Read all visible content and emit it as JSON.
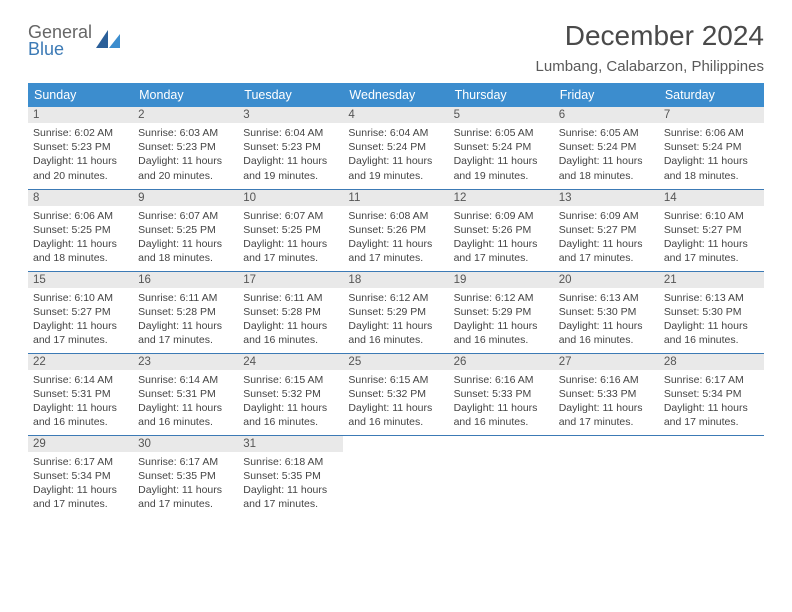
{
  "logo": {
    "line1": "General",
    "line2": "Blue"
  },
  "title": "December 2024",
  "subtitle": "Lumbang, Calabarzon, Philippines",
  "colors": {
    "header_bg": "#3c8dce",
    "header_fg": "#ffffff",
    "divider": "#3c7ab5",
    "daynum_bg": "#e9e9e9",
    "logo_accent": "#3c7ab5"
  },
  "weekdays": [
    "Sunday",
    "Monday",
    "Tuesday",
    "Wednesday",
    "Thursday",
    "Friday",
    "Saturday"
  ],
  "days": [
    {
      "n": "1",
      "sr": "6:02 AM",
      "ss": "5:23 PM",
      "dl": "11 hours and 20 minutes."
    },
    {
      "n": "2",
      "sr": "6:03 AM",
      "ss": "5:23 PM",
      "dl": "11 hours and 20 minutes."
    },
    {
      "n": "3",
      "sr": "6:04 AM",
      "ss": "5:23 PM",
      "dl": "11 hours and 19 minutes."
    },
    {
      "n": "4",
      "sr": "6:04 AM",
      "ss": "5:24 PM",
      "dl": "11 hours and 19 minutes."
    },
    {
      "n": "5",
      "sr": "6:05 AM",
      "ss": "5:24 PM",
      "dl": "11 hours and 19 minutes."
    },
    {
      "n": "6",
      "sr": "6:05 AM",
      "ss": "5:24 PM",
      "dl": "11 hours and 18 minutes."
    },
    {
      "n": "7",
      "sr": "6:06 AM",
      "ss": "5:24 PM",
      "dl": "11 hours and 18 minutes."
    },
    {
      "n": "8",
      "sr": "6:06 AM",
      "ss": "5:25 PM",
      "dl": "11 hours and 18 minutes."
    },
    {
      "n": "9",
      "sr": "6:07 AM",
      "ss": "5:25 PM",
      "dl": "11 hours and 18 minutes."
    },
    {
      "n": "10",
      "sr": "6:07 AM",
      "ss": "5:25 PM",
      "dl": "11 hours and 17 minutes."
    },
    {
      "n": "11",
      "sr": "6:08 AM",
      "ss": "5:26 PM",
      "dl": "11 hours and 17 minutes."
    },
    {
      "n": "12",
      "sr": "6:09 AM",
      "ss": "5:26 PM",
      "dl": "11 hours and 17 minutes."
    },
    {
      "n": "13",
      "sr": "6:09 AM",
      "ss": "5:27 PM",
      "dl": "11 hours and 17 minutes."
    },
    {
      "n": "14",
      "sr": "6:10 AM",
      "ss": "5:27 PM",
      "dl": "11 hours and 17 minutes."
    },
    {
      "n": "15",
      "sr": "6:10 AM",
      "ss": "5:27 PM",
      "dl": "11 hours and 17 minutes."
    },
    {
      "n": "16",
      "sr": "6:11 AM",
      "ss": "5:28 PM",
      "dl": "11 hours and 17 minutes."
    },
    {
      "n": "17",
      "sr": "6:11 AM",
      "ss": "5:28 PM",
      "dl": "11 hours and 16 minutes."
    },
    {
      "n": "18",
      "sr": "6:12 AM",
      "ss": "5:29 PM",
      "dl": "11 hours and 16 minutes."
    },
    {
      "n": "19",
      "sr": "6:12 AM",
      "ss": "5:29 PM",
      "dl": "11 hours and 16 minutes."
    },
    {
      "n": "20",
      "sr": "6:13 AM",
      "ss": "5:30 PM",
      "dl": "11 hours and 16 minutes."
    },
    {
      "n": "21",
      "sr": "6:13 AM",
      "ss": "5:30 PM",
      "dl": "11 hours and 16 minutes."
    },
    {
      "n": "22",
      "sr": "6:14 AM",
      "ss": "5:31 PM",
      "dl": "11 hours and 16 minutes."
    },
    {
      "n": "23",
      "sr": "6:14 AM",
      "ss": "5:31 PM",
      "dl": "11 hours and 16 minutes."
    },
    {
      "n": "24",
      "sr": "6:15 AM",
      "ss": "5:32 PM",
      "dl": "11 hours and 16 minutes."
    },
    {
      "n": "25",
      "sr": "6:15 AM",
      "ss": "5:32 PM",
      "dl": "11 hours and 16 minutes."
    },
    {
      "n": "26",
      "sr": "6:16 AM",
      "ss": "5:33 PM",
      "dl": "11 hours and 16 minutes."
    },
    {
      "n": "27",
      "sr": "6:16 AM",
      "ss": "5:33 PM",
      "dl": "11 hours and 17 minutes."
    },
    {
      "n": "28",
      "sr": "6:17 AM",
      "ss": "5:34 PM",
      "dl": "11 hours and 17 minutes."
    },
    {
      "n": "29",
      "sr": "6:17 AM",
      "ss": "5:34 PM",
      "dl": "11 hours and 17 minutes."
    },
    {
      "n": "30",
      "sr": "6:17 AM",
      "ss": "5:35 PM",
      "dl": "11 hours and 17 minutes."
    },
    {
      "n": "31",
      "sr": "6:18 AM",
      "ss": "5:35 PM",
      "dl": "11 hours and 17 minutes."
    }
  ],
  "labels": {
    "sunrise": "Sunrise:",
    "sunset": "Sunset:",
    "daylight": "Daylight:"
  }
}
